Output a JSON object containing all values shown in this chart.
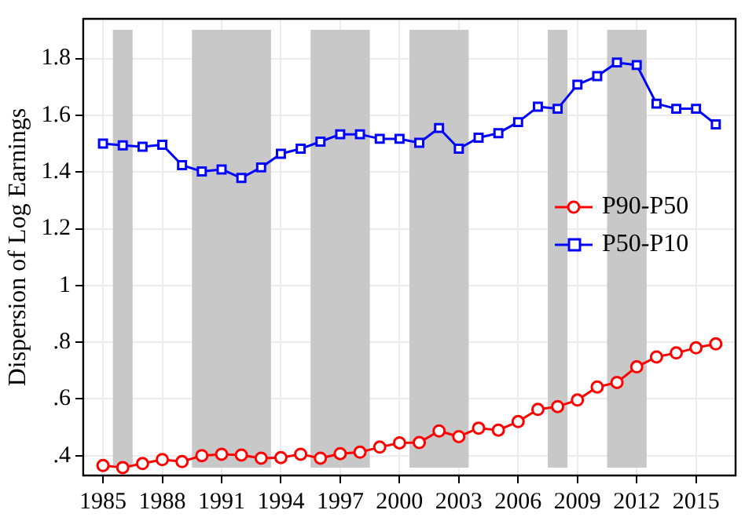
{
  "chart_data": {
    "type": "line",
    "ylabel": "Dispersion of Log Earnings",
    "x": [
      1985,
      1986,
      1987,
      1988,
      1989,
      1990,
      1991,
      1992,
      1993,
      1994,
      1995,
      1996,
      1997,
      1998,
      1999,
      2000,
      2001,
      2002,
      2003,
      2004,
      2005,
      2006,
      2007,
      2008,
      2009,
      2010,
      2011,
      2012,
      2013,
      2014,
      2015,
      2016
    ],
    "series": [
      {
        "name": "P90-P50",
        "color": "#ff0000",
        "marker": "circle",
        "values": [
          0.365,
          0.358,
          0.372,
          0.386,
          0.379,
          0.4,
          0.405,
          0.402,
          0.391,
          0.393,
          0.405,
          0.391,
          0.407,
          0.412,
          0.43,
          0.445,
          0.446,
          0.487,
          0.467,
          0.497,
          0.49,
          0.52,
          0.563,
          0.573,
          0.596,
          0.642,
          0.658,
          0.713,
          0.748,
          0.762,
          0.78,
          0.794
        ]
      },
      {
        "name": "P50-P10",
        "color": "#0000ff",
        "marker": "square",
        "values": [
          1.5,
          1.494,
          1.489,
          1.496,
          1.424,
          1.402,
          1.409,
          1.379,
          1.416,
          1.464,
          1.482,
          1.507,
          1.533,
          1.533,
          1.517,
          1.517,
          1.503,
          1.555,
          1.482,
          1.521,
          1.537,
          1.576,
          1.63,
          1.623,
          1.708,
          1.738,
          1.786,
          1.777,
          1.641,
          1.623,
          1.623,
          1.568
        ]
      }
    ],
    "xlim": [
      1984,
      2017
    ],
    "xticks": [
      1985,
      1988,
      1991,
      1994,
      1997,
      2000,
      2003,
      2006,
      2009,
      2012,
      2015
    ],
    "ylim": [
      0.33,
      1.94
    ],
    "yticks": [
      {
        "value": 0.4,
        "label": ".4"
      },
      {
        "value": 0.6,
        "label": ".6"
      },
      {
        "value": 0.8,
        "label": ".8"
      },
      {
        "value": 1,
        "label": "1"
      },
      {
        "value": 1.2,
        "label": "1.2"
      },
      {
        "value": 1.4,
        "label": "1.4"
      },
      {
        "value": 1.6,
        "label": "1.6"
      },
      {
        "value": 1.8,
        "label": "1.8"
      }
    ],
    "bands": [
      {
        "axis": "x",
        "from": 1985.5,
        "to": 1986.5,
        "color": "#c8c8c8"
      },
      {
        "axis": "x",
        "from": 1989.5,
        "to": 1993.5,
        "color": "#c8c8c8"
      },
      {
        "axis": "x",
        "from": 1995.5,
        "to": 1998.5,
        "color": "#c8c8c8"
      },
      {
        "axis": "x",
        "from": 2000.5,
        "to": 2003.5,
        "color": "#c8c8c8"
      },
      {
        "axis": "x",
        "from": 2007.5,
        "to": 2008.5,
        "color": "#c8c8c8"
      },
      {
        "axis": "x",
        "from": 2010.5,
        "to": 2012.5,
        "color": "#c8c8c8"
      }
    ],
    "grid": true,
    "legend": "right",
    "line_style": "solid"
  }
}
